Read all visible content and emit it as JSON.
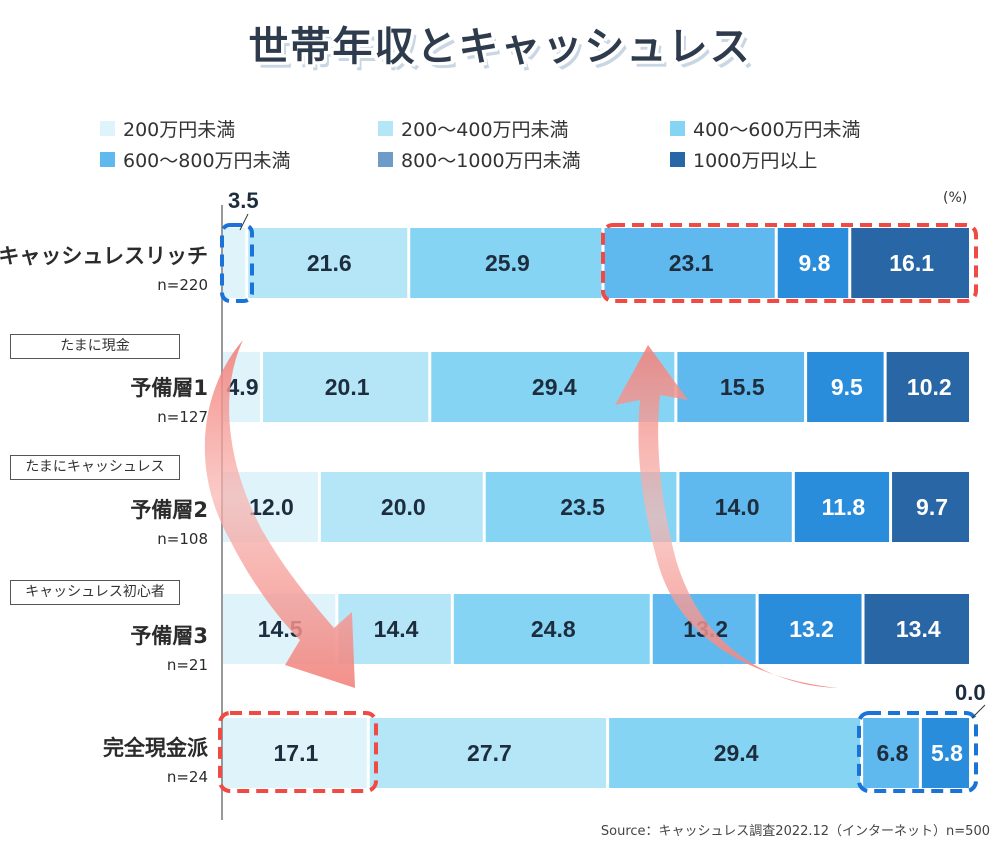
{
  "title": "世帯年収とキャッシュレス",
  "chart_data": {
    "type": "bar",
    "orientation": "horizontal-stacked-100",
    "unit_label": "(%)",
    "legend": [
      {
        "label": "200万円未満",
        "color": "#dff3fb"
      },
      {
        "label": "200〜400万円未満",
        "color": "#b5e6f8"
      },
      {
        "label": "400〜600万円未満",
        "color": "#85d4f3"
      },
      {
        "label": "600〜800万円未満",
        "color": "#60b9ee"
      },
      {
        "label": "800〜1000万円未満",
        "color": "#2a8ddc"
      },
      {
        "label": "1000万円以上",
        "color": "#2866a5"
      }
    ],
    "categories": [
      {
        "name": "キャッシュレスリッチ",
        "n": "n=220",
        "tag": null,
        "values": [
          3.5,
          21.6,
          25.9,
          23.1,
          9.8,
          16.1
        ]
      },
      {
        "name": "予備層1",
        "n": "n=127",
        "tag": "たまに現金",
        "values": [
          4.9,
          20.1,
          29.4,
          15.5,
          9.5,
          10.2
        ]
      },
      {
        "name": "予備層2",
        "n": "n=108",
        "tag": "たまにキャッシュレス",
        "values": [
          12.0,
          20.0,
          23.5,
          14.0,
          11.8,
          9.7
        ]
      },
      {
        "name": "予備層3",
        "n": "n=21",
        "tag": "キャッシュレス初心者",
        "values": [
          14.5,
          14.4,
          24.8,
          13.2,
          13.2,
          13.4
        ]
      },
      {
        "name": "完全現金派",
        "n": "n=24",
        "tag": null,
        "values": [
          17.1,
          27.7,
          29.4,
          6.8,
          5.8,
          0.0
        ]
      }
    ],
    "outside_labels": [
      "3.5",
      "0.0"
    ],
    "source": "Source：キャッシュレス調査2022.12（インターネット）n=500"
  }
}
